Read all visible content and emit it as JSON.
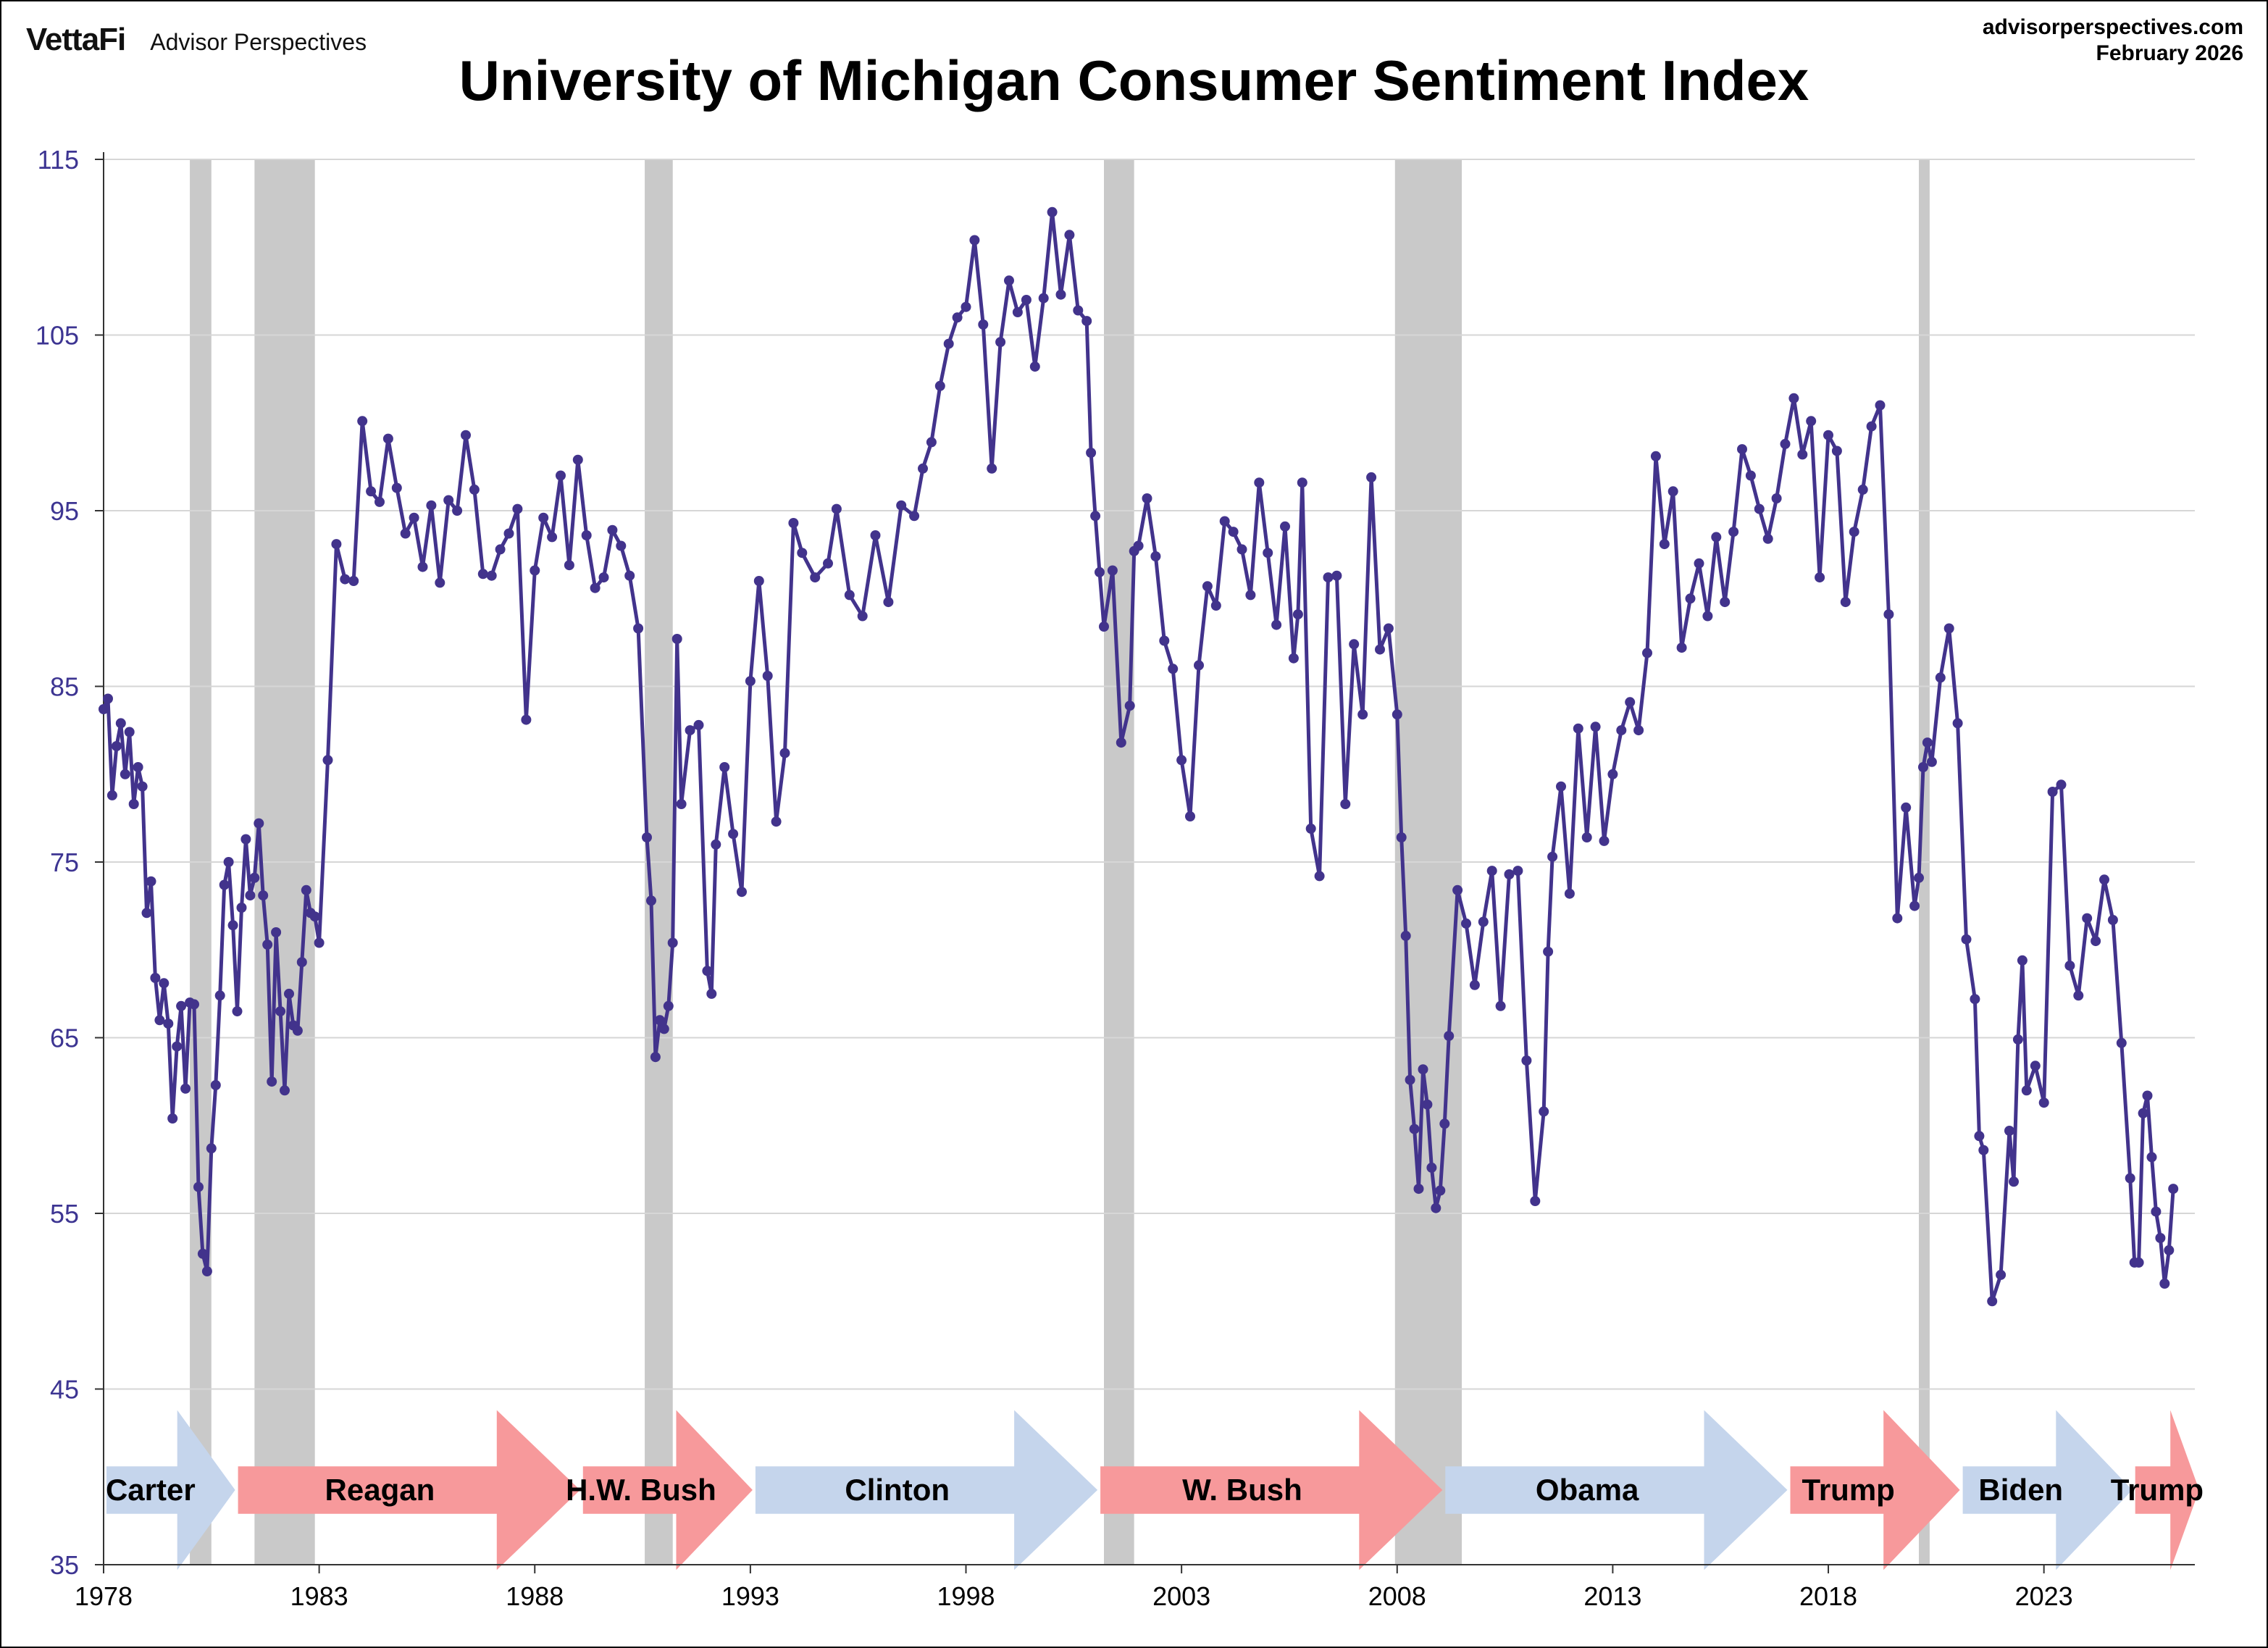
{
  "header": {
    "brand_logo": "VettaFi",
    "brand_name": "Advisor Perspectives",
    "source_site": "advisorperspectives.com",
    "source_date": "February 2026"
  },
  "colors": {
    "line": "#42338c",
    "recession": "#c9c9c9",
    "grid": "#d6d6d6",
    "democrat": "#c5d5ec",
    "republican": "#f7999b",
    "ytick": "#3d3592"
  },
  "chart_data": {
    "type": "line",
    "title": "University of Michigan Consumer Sentiment Index",
    "xlabel": "",
    "ylabel": "",
    "xlim": [
      1978,
      2026.5
    ],
    "ylim": [
      35,
      115
    ],
    "yticks": [
      35,
      45,
      55,
      65,
      75,
      85,
      95,
      105,
      115
    ],
    "xticks": [
      1978,
      1983,
      1988,
      1993,
      1998,
      2003,
      2008,
      2013,
      2018,
      2023
    ],
    "grid": "horizontal",
    "recessions": [
      [
        1980.0,
        1980.5
      ],
      [
        1981.5,
        1982.9
      ],
      [
        1990.55,
        1991.2
      ],
      [
        2001.2,
        2001.9
      ],
      [
        2007.95,
        2009.5
      ],
      [
        2020.1,
        2020.35
      ]
    ],
    "presidents": [
      {
        "name": "Carter",
        "party": "D",
        "start": 1978.0,
        "end": 1981.05
      },
      {
        "name": "Reagan",
        "party": "R",
        "start": 1981.05,
        "end": 1989.05
      },
      {
        "name": "H.W. Bush",
        "party": "R",
        "start": 1989.05,
        "end": 1993.05
      },
      {
        "name": "Clinton",
        "party": "D",
        "start": 1993.05,
        "end": 2001.05
      },
      {
        "name": "W. Bush",
        "party": "R",
        "start": 2001.05,
        "end": 2009.05
      },
      {
        "name": "Obama",
        "party": "D",
        "start": 2009.05,
        "end": 2017.05
      },
      {
        "name": "Trump",
        "party": "R",
        "start": 2017.05,
        "end": 2021.05
      },
      {
        "name": "Biden",
        "party": "D",
        "start": 2021.05,
        "end": 2025.05
      },
      {
        "name": "Trump",
        "party": "R",
        "start": 2025.05,
        "end": 2026.6
      }
    ],
    "series": [
      {
        "x": [
          1978.0,
          1978.1,
          1978.2,
          1978.3,
          1978.4,
          1978.5,
          1978.6,
          1978.7,
          1978.8,
          1978.9,
          1979.0,
          1979.1,
          1979.2,
          1979.3,
          1979.4,
          1979.5,
          1979.6,
          1979.7,
          1979.8,
          1979.9,
          1980.0,
          1980.1,
          1980.2,
          1980.3,
          1980.4,
          1980.5,
          1980.6,
          1980.7,
          1980.8,
          1980.9,
          1981.0,
          1981.1,
          1981.2,
          1981.3,
          1981.4,
          1981.5,
          1981.6,
          1981.7,
          1981.8,
          1981.9,
          1982.0,
          1982.1,
          1982.2,
          1982.3,
          1982.4,
          1982.5,
          1982.6,
          1982.7,
          1982.8,
          1982.9,
          1983.0,
          1983.2,
          1983.4,
          1983.6,
          1983.8,
          1984.0,
          1984.2,
          1984.4,
          1984.6,
          1984.8,
          1985.0,
          1985.2,
          1985.4,
          1985.6,
          1985.8,
          1986.0,
          1986.2,
          1986.4,
          1986.6,
          1986.8,
          1987.0,
          1987.2,
          1987.4,
          1987.6,
          1987.8,
          1988.0,
          1988.2,
          1988.4,
          1988.6,
          1988.8,
          1989.0,
          1989.2,
          1989.4,
          1989.6,
          1989.8,
          1990.0,
          1990.2,
          1990.4,
          1990.6,
          1990.7,
          1990.8,
          1990.9,
          1991.0,
          1991.1,
          1991.2,
          1991.3,
          1991.4,
          1991.6,
          1991.8,
          1992.0,
          1992.1,
          1992.2,
          1992.4,
          1992.6,
          1992.8,
          1993.0,
          1993.2,
          1993.4,
          1993.6,
          1993.8,
          1994.0,
          1994.2,
          1994.5,
          1994.8,
          1995.0,
          1995.3,
          1995.6,
          1995.9,
          1996.2,
          1996.5,
          1996.8,
          1997.0,
          1997.2,
          1997.4,
          1997.6,
          1997.8,
          1998.0,
          1998.2,
          1998.4,
          1998.6,
          1998.8,
          1999.0,
          1999.2,
          1999.4,
          1999.6,
          1999.8,
          2000.0,
          2000.2,
          2000.4,
          2000.6,
          2000.8,
          2000.9,
          2001.0,
          2001.1,
          2001.2,
          2001.4,
          2001.6,
          2001.8,
          2001.9,
          2002.0,
          2002.2,
          2002.4,
          2002.6,
          2002.8,
          2003.0,
          2003.2,
          2003.4,
          2003.6,
          2003.8,
          2004.0,
          2004.2,
          2004.4,
          2004.6,
          2004.8,
          2005.0,
          2005.2,
          2005.4,
          2005.6,
          2005.7,
          2005.8,
          2006.0,
          2006.2,
          2006.4,
          2006.6,
          2006.8,
          2007.0,
          2007.2,
          2007.4,
          2007.6,
          2007.8,
          2008.0,
          2008.1,
          2008.2,
          2008.3,
          2008.4,
          2008.5,
          2008.6,
          2008.7,
          2008.8,
          2008.9,
          2009.0,
          2009.1,
          2009.2,
          2009.4,
          2009.6,
          2009.8,
          2010.0,
          2010.2,
          2010.4,
          2010.6,
          2010.8,
          2011.0,
          2011.2,
          2011.4,
          2011.5,
          2011.6,
          2011.8,
          2012.0,
          2012.2,
          2012.4,
          2012.6,
          2012.8,
          2013.0,
          2013.2,
          2013.4,
          2013.6,
          2013.8,
          2014.0,
          2014.2,
          2014.4,
          2014.6,
          2014.8,
          2015.0,
          2015.2,
          2015.4,
          2015.6,
          2015.8,
          2016.0,
          2016.2,
          2016.4,
          2016.6,
          2016.8,
          2017.0,
          2017.2,
          2017.4,
          2017.6,
          2017.8,
          2018.0,
          2018.2,
          2018.4,
          2018.6,
          2018.8,
          2019.0,
          2019.2,
          2019.4,
          2019.6,
          2019.8,
          2020.0,
          2020.1,
          2020.2,
          2020.3,
          2020.4,
          2020.6,
          2020.8,
          2021.0,
          2021.2,
          2021.4,
          2021.5,
          2021.6,
          2021.8,
          2022.0,
          2022.2,
          2022.3,
          2022.4,
          2022.5,
          2022.6,
          2022.8,
          2023.0,
          2023.2,
          2023.4,
          2023.6,
          2023.8,
          2024.0,
          2024.2,
          2024.4,
          2024.6,
          2024.8,
          2025.0,
          2025.1,
          2025.2,
          2025.3,
          2025.4,
          2025.5,
          2025.6,
          2025.7,
          2025.8,
          2025.9,
          2026.0
        ],
        "values": [
          83.7,
          84.3,
          78.8,
          81.6,
          82.9,
          80.0,
          82.4,
          78.3,
          80.4,
          79.3,
          72.1,
          73.9,
          68.4,
          66.0,
          68.1,
          65.8,
          60.4,
          64.5,
          66.8,
          62.1,
          67.0,
          66.9,
          56.5,
          52.7,
          51.7,
          58.7,
          62.3,
          67.4,
          73.7,
          75.0,
          71.4,
          66.5,
          72.4,
          76.3,
          73.1,
          74.1,
          77.2,
          73.1,
          70.3,
          62.5,
          71.0,
          66.5,
          62.0,
          67.5,
          65.7,
          65.4,
          69.3,
          73.4,
          72.1,
          71.9,
          70.4,
          80.8,
          93.1,
          91.1,
          91.0,
          100.1,
          96.1,
          95.5,
          99.1,
          96.3,
          93.7,
          94.6,
          91.8,
          95.3,
          90.9,
          95.6,
          95.0,
          99.3,
          96.2,
          91.4,
          91.3,
          92.8,
          93.7,
          95.1,
          83.1,
          91.6,
          94.6,
          93.5,
          97.0,
          91.9,
          97.9,
          93.6,
          90.6,
          91.2,
          93.9,
          93.0,
          91.3,
          88.3,
          76.4,
          72.8,
          63.9,
          66.0,
          65.5,
          66.8,
          70.4,
          87.7,
          78.3,
          82.5,
          82.8,
          68.8,
          67.5,
          76.0,
          80.4,
          76.6,
          73.3,
          85.3,
          91.0,
          85.6,
          77.3,
          81.2,
          94.3,
          92.6,
          91.2,
          92.0,
          95.1,
          90.2,
          89.0,
          93.6,
          89.8,
          95.3,
          94.7,
          97.4,
          98.9,
          102.1,
          104.5,
          106.0,
          106.6,
          110.4,
          105.6,
          97.4,
          104.6,
          108.1,
          106.3,
          107.0,
          103.2,
          107.1,
          112.0,
          107.3,
          110.7,
          106.4,
          105.8,
          98.3,
          94.7,
          91.5,
          88.4,
          91.6,
          81.8,
          83.9,
          92.7,
          93.0,
          95.7,
          92.4,
          87.6,
          86.0,
          80.8,
          77.6,
          86.2,
          90.7,
          89.6,
          94.4,
          93.8,
          92.8,
          90.2,
          96.6,
          92.6,
          88.5,
          94.1,
          86.6,
          89.1,
          96.6,
          76.9,
          74.2,
          91.2,
          91.3,
          78.3,
          87.4,
          83.4,
          96.9,
          87.1,
          88.3,
          83.4,
          76.4,
          70.8,
          62.6,
          59.8,
          56.4,
          63.2,
          61.2,
          57.6,
          55.3,
          56.3,
          60.1,
          65.1,
          73.4,
          71.5,
          68.0,
          71.6,
          74.5,
          66.8,
          74.3,
          74.5,
          63.7,
          55.7,
          60.8,
          69.9,
          75.3,
          79.3,
          73.2,
          82.6,
          76.4,
          82.7,
          76.2,
          80.0,
          82.5,
          84.1,
          82.5,
          86.9,
          98.1,
          93.1,
          96.1,
          87.2,
          90.0,
          92.0,
          89.0,
          93.5,
          89.8,
          93.8,
          98.5,
          97.0,
          95.1,
          93.4,
          95.7,
          98.8,
          101.4,
          98.2,
          100.1,
          91.2,
          99.3,
          98.4,
          89.8,
          93.8,
          96.2,
          99.8,
          101.0,
          89.1,
          71.8,
          78.1,
          72.5,
          74.1,
          80.4,
          81.8,
          80.7,
          85.5,
          88.3,
          82.9,
          70.6,
          67.2,
          59.4,
          58.6,
          50.0,
          51.5,
          59.7,
          56.8,
          64.9,
          69.4,
          62.0,
          63.4,
          61.3,
          79.0,
          79.4,
          69.1,
          67.4,
          71.8,
          70.5,
          74.0,
          71.7,
          64.7,
          57.0,
          52.2,
          52.2,
          60.7,
          61.7,
          58.2,
          55.1,
          53.6,
          51.0,
          52.9,
          56.4
        ]
      }
    ]
  }
}
